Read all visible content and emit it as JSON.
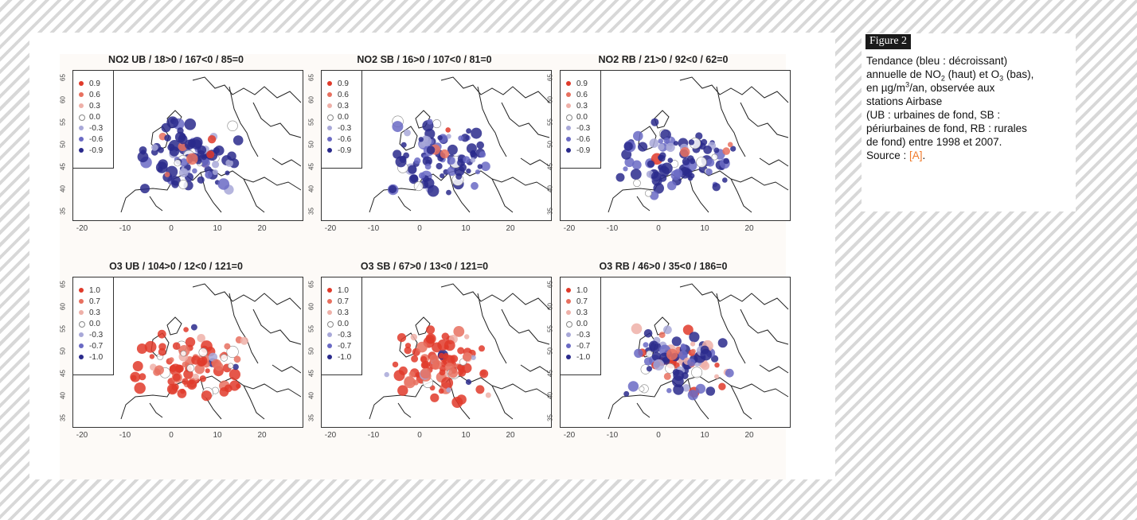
{
  "figure": {
    "maps": [
      {
        "id": "no2-ub",
        "title": "NO2 UB / 18>0 / 167<0 / 85=0",
        "legend": [
          "0.9",
          "0.6",
          "0.3",
          "0.0",
          "-0.3",
          "-0.6",
          "-0.9"
        ],
        "dominant_trend": "decreasing"
      },
      {
        "id": "no2-sb",
        "title": "NO2 SB / 16>0 / 107<0 / 81=0",
        "legend": [
          "0.9",
          "0.6",
          "0.3",
          "0.0",
          "-0.3",
          "-0.6",
          "-0.9"
        ],
        "dominant_trend": "decreasing"
      },
      {
        "id": "no2-rb",
        "title": "NO2 RB / 21>0 / 92<0 / 62=0",
        "legend": [
          "0.9",
          "0.6",
          "0.3",
          "0.0",
          "-0.3",
          "-0.6",
          "-0.9"
        ],
        "dominant_trend": "decreasing"
      },
      {
        "id": "o3-ub",
        "title": "O3 UB / 104>0 / 12<0 / 121=0",
        "legend": [
          "1.0",
          "0.7",
          "0.3",
          "0.0",
          "-0.3",
          "-0.7",
          "-1.0"
        ],
        "dominant_trend": "increasing"
      },
      {
        "id": "o3-sb",
        "title": "O3 SB / 67>0 / 13<0 / 121=0",
        "legend": [
          "1.0",
          "0.7",
          "0.3",
          "0.0",
          "-0.3",
          "-0.7",
          "-1.0"
        ],
        "dominant_trend": "increasing"
      },
      {
        "id": "o3-rb",
        "title": "O3 RB / 46>0 / 35<0 / 186=0",
        "legend": [
          "1.0",
          "0.7",
          "0.3",
          "0.0",
          "-0.3",
          "-0.7",
          "-1.0"
        ],
        "dominant_trend": "mixed"
      }
    ],
    "x_ticks": [
      "-20",
      "-10",
      "0",
      "10",
      "20"
    ],
    "y_ticks": [
      "35",
      "40",
      "45",
      "50",
      "55",
      "60",
      "65"
    ],
    "legend_colors": [
      "#e03a2a",
      "#e8705f",
      "#eeb0a8",
      "#ffffff",
      "#a8a8d8",
      "#6a6ac4",
      "#2a2a8c"
    ]
  },
  "caption": {
    "title": "Figure 2",
    "line1": "Tendance (bleu : décroissant)",
    "line2_a": "annuelle de NO",
    "line2_sub": "2",
    "line2_b": " (haut) et O",
    "line2_sub2": "3",
    "line2_c": " (bas),",
    "line3_a": "en µg/m",
    "line3_sup": "3",
    "line3_b": "/an, observée aux",
    "line4": "stations Airbase",
    "line5": "(UB : urbaines de fond, SB :",
    "line6": "périurbaines de fond, RB : rurales",
    "line7": "de fond) entre 1998 et 2007.",
    "line8_a": "Source : ",
    "line8_ref": "[A]",
    "line8_b": "."
  }
}
